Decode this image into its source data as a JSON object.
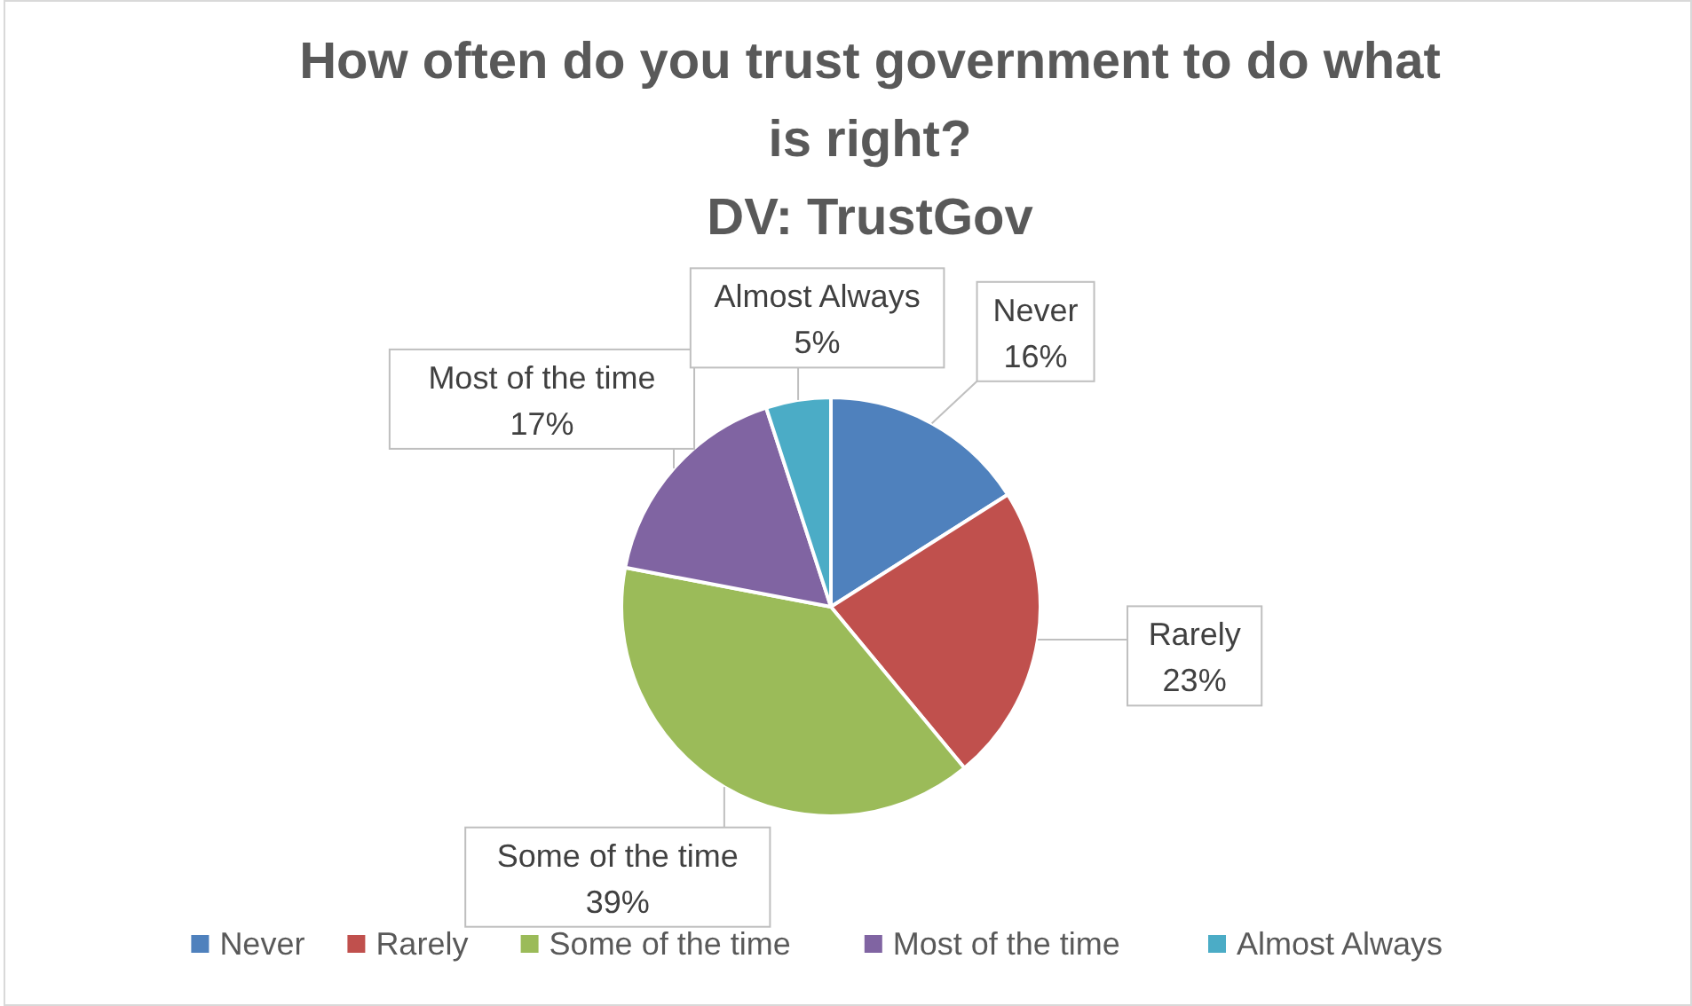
{
  "chart_data": {
    "type": "pie",
    "title": "How often do you trust government to do what is right?",
    "subtitle": "DV: TrustGov",
    "categories": [
      "Never",
      "Rarely",
      "Some of the time",
      "Most of the time",
      "Almost Always"
    ],
    "values": [
      16,
      23,
      39,
      17,
      5
    ],
    "colors": [
      "#4f81bd",
      "#c0504d",
      "#9bbb59",
      "#8064a2",
      "#4bacc6"
    ],
    "value_labels": [
      "16%",
      "23%",
      "39%",
      "17%",
      "5%"
    ],
    "legend": "bottom"
  }
}
